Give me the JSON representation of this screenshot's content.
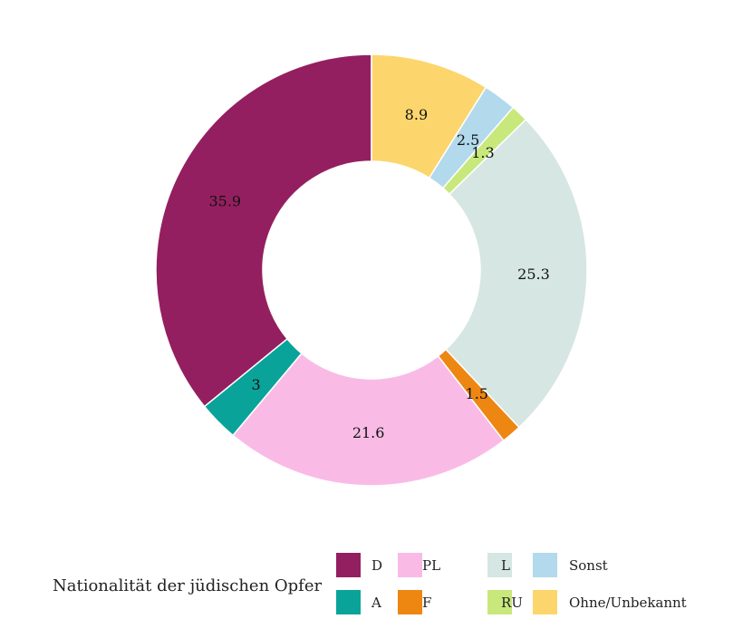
{
  "chart_data": {
    "type": "pie",
    "donut": true,
    "legend_title": "Nationalität der jüdischen Opfer",
    "legend_position": "bottom",
    "direction": "counter-clockwise from top",
    "slices": [
      {
        "label": "D",
        "value": 35.9,
        "color": "#941f60"
      },
      {
        "label": "A",
        "value": 3,
        "color": "#0aa39a"
      },
      {
        "label": "PL",
        "value": 21.6,
        "color": "#f9bbe6"
      },
      {
        "label": "F",
        "value": 1.5,
        "color": "#ee8612"
      },
      {
        "label": "L",
        "value": 25.3,
        "color": "#d6e6e2"
      },
      {
        "label": "RU",
        "value": 1.3,
        "color": "#c8e87c"
      },
      {
        "label": "Sonst",
        "value": 2.5,
        "color": "#b2d9ec"
      },
      {
        "label": "Ohne/Unbekannt",
        "value": 8.9,
        "color": "#fcd66c"
      }
    ]
  }
}
